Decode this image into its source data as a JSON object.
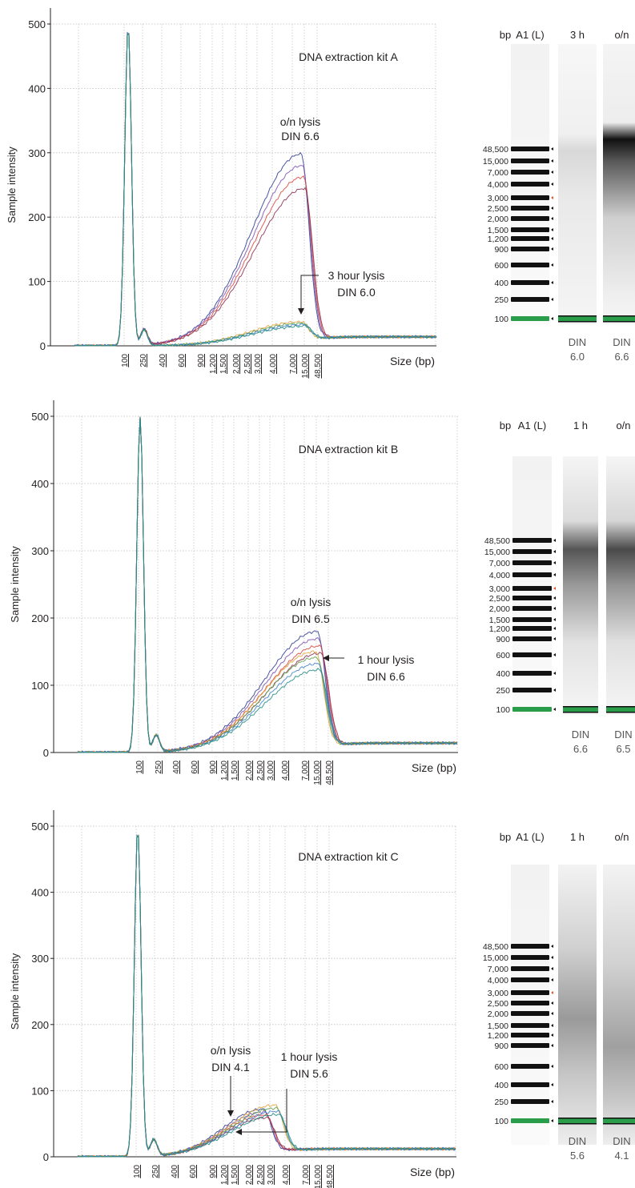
{
  "panels": [
    {
      "chart_data": {
        "type": "line",
        "title": "DNA extraction kit A",
        "xlabel": "Size (bp)",
        "ylabel": "Sample intensity",
        "ylim": [
          0,
          500
        ],
        "yticks": [
          "0",
          "100",
          "200",
          "300",
          "400",
          "500"
        ],
        "x_scale": "categorical-log (sizing ladder)",
        "xticks": [
          "100",
          "250",
          "400",
          "600",
          "900",
          "1,200",
          "1,500",
          "2,000",
          "2,500",
          "3,000",
          "4,000",
          "7,000",
          "15,000",
          "48,500"
        ],
        "grid": true,
        "series_groups": [
          {
            "label": "o/n lysis",
            "peak_size_bp": 15000,
            "peak_intensity": 298,
            "traces": 4
          },
          {
            "label": "3 hour lysis",
            "peak_size_bp": 15000,
            "peak_intensity": 37,
            "traces": 4
          }
        ],
        "marker_peak": {
          "size_bp": 100,
          "intensity": 498
        }
      },
      "annotations": [
        {
          "line1": "o/n lysis",
          "line2": "DIN 6.6"
        },
        {
          "line1": "3 hour lysis",
          "line2": "DIN 6.0"
        }
      ],
      "gel": {
        "header": [
          "bp",
          "A1 (L)",
          "3 h",
          "o/n"
        ],
        "warning_icon": "warning-icon",
        "ladder": [
          "48,500",
          "15,000",
          "7,000",
          "4,000",
          "3,000",
          "2,500",
          "2,000",
          "1,500",
          "1,200",
          "900",
          "600",
          "400",
          "250",
          "100"
        ],
        "din_labels": [
          [
            "DIN",
            "6.0"
          ],
          [
            "DIN",
            "6.6"
          ]
        ]
      }
    },
    {
      "chart_data": {
        "type": "line",
        "title": "DNA extraction kit B",
        "xlabel": "Size (bp)",
        "ylabel": "Sample intensity",
        "ylim": [
          0,
          500
        ],
        "yticks": [
          "0",
          "100",
          "200",
          "300",
          "400",
          "500"
        ],
        "x_scale": "categorical-log (sizing ladder)",
        "xticks": [
          "100",
          "250",
          "400",
          "600",
          "900",
          "1,200",
          "1,500",
          "2,000",
          "2,500",
          "3,000",
          "4,000",
          "7,000",
          "15,000",
          "48,500"
        ],
        "grid": true,
        "series_groups": [
          {
            "label": "o/n lysis",
            "peak_size_bp": 15000,
            "peak_intensity": 180,
            "traces": 4
          },
          {
            "label": "1 hour lysis",
            "peak_size_bp": 15000,
            "peak_intensity": 150,
            "traces": 4
          }
        ],
        "marker_peak": {
          "size_bp": 100,
          "intensity": 500
        }
      },
      "annotations": [
        {
          "line1": "o/n lysis",
          "line2": "DIN 6.5"
        },
        {
          "line1": "1 hour lysis",
          "line2": "DIN 6.6"
        }
      ],
      "gel": {
        "header": [
          "bp",
          "A1 (L)",
          "1 h",
          "o/n"
        ],
        "ladder": [
          "48,500",
          "15,000",
          "7,000",
          "4,000",
          "3,000",
          "2,500",
          "2,000",
          "1,500",
          "1,200",
          "900",
          "600",
          "400",
          "250",
          "100"
        ],
        "din_labels": [
          [
            "DIN",
            "6.6"
          ],
          [
            "DIN",
            "6.5"
          ]
        ]
      }
    },
    {
      "chart_data": {
        "type": "line",
        "title": "DNA extraction kit C",
        "xlabel": "Size (bp)",
        "ylabel": "Sample intensity",
        "ylim": [
          0,
          500
        ],
        "yticks": [
          "0",
          "100",
          "200",
          "300",
          "400",
          "500"
        ],
        "x_scale": "categorical-log (sizing ladder)",
        "xticks": [
          "100",
          "250",
          "400",
          "600",
          "900",
          "1,200",
          "1,500",
          "2,000",
          "2,500",
          "3,000",
          "4,000",
          "7,000",
          "15,000",
          "48,500"
        ],
        "grid": true,
        "series_groups": [
          {
            "label": "o/n lysis",
            "peak_size_bp": 2500,
            "peak_intensity": 72,
            "traces": 4
          },
          {
            "label": "1 hour lysis",
            "peak_size_bp": 3000,
            "peak_intensity": 78,
            "traces": 4
          }
        ],
        "marker_peak": {
          "size_bp": 100,
          "intensity": 500
        }
      },
      "annotations": [
        {
          "line1": "o/n lysis",
          "line2": "DIN 4.1"
        },
        {
          "line1": "1 hour lysis",
          "line2": "DIN 5.6"
        }
      ],
      "gel": {
        "header": [
          "bp",
          "A1 (L)",
          "1 h",
          "o/n"
        ],
        "ladder": [
          "48,500",
          "15,000",
          "7,000",
          "4,000",
          "3,000",
          "2,500",
          "2,000",
          "1,500",
          "1,200",
          "900",
          "600",
          "400",
          "250",
          "100"
        ],
        "din_labels": [
          [
            "DIN",
            "5.6"
          ],
          [
            "DIN",
            "4.1"
          ]
        ]
      }
    }
  ],
  "colors": {
    "traces": [
      "#2b3a8f",
      "#7b4fb0",
      "#d6453a",
      "#8a2c4e",
      "#e0a23a",
      "#5fa04e",
      "#3f7fc8",
      "#1f8a80"
    ],
    "ladder_band": "#111111",
    "marker_green": "#2a9d4a",
    "warning": "#f2c21b"
  }
}
